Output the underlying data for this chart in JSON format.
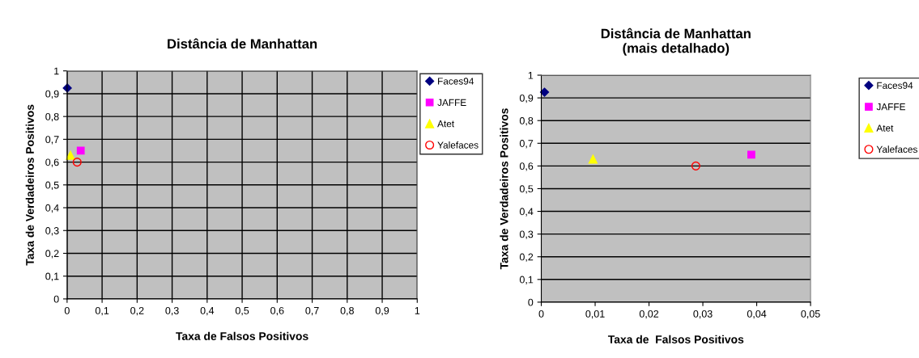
{
  "chart_data": [
    {
      "type": "scatter",
      "title": "Distância de Manhattan",
      "xlabel": "Taxa de Falsos Positivos",
      "ylabel": "Taxa de Verdadeiros Positivos",
      "xlim": [
        0,
        1
      ],
      "ylim": [
        0,
        1
      ],
      "xticks": [
        0,
        {
          "value": 0.1,
          "label": "0,1"
        },
        {
          "value": 0.2,
          "label": "0,2"
        },
        {
          "value": 0.3,
          "label": "0,3"
        },
        {
          "value": 0.4,
          "label": "0,4"
        },
        {
          "value": 0.5,
          "label": "0,5"
        },
        {
          "value": 0.6,
          "label": "0,6"
        },
        {
          "value": 0.7,
          "label": "0,7"
        },
        {
          "value": 0.8,
          "label": "0,8"
        },
        {
          "value": 0.9,
          "label": "0,9"
        },
        1
      ],
      "yticks": [
        0,
        {
          "value": 0.1,
          "label": "0,1"
        },
        {
          "value": 0.2,
          "label": "0,2"
        },
        {
          "value": 0.3,
          "label": "0,3"
        },
        {
          "value": 0.4,
          "label": "0,4"
        },
        {
          "value": 0.5,
          "label": "0,5"
        },
        {
          "value": 0.6,
          "label": "0,6"
        },
        {
          "value": 0.7,
          "label": "0,7"
        },
        {
          "value": 0.8,
          "label": "0,8"
        },
        {
          "value": 0.9,
          "label": "0,9"
        },
        1
      ],
      "grid": true,
      "legend": "right",
      "series": [
        {
          "name": "Faces94",
          "color": "#000080",
          "marker": "diamond",
          "x": [
            0.0006
          ],
          "values": [
            0.925
          ]
        },
        {
          "name": "JAFFE",
          "color": "#ff00ff",
          "marker": "square",
          "x": [
            0.039
          ],
          "values": [
            0.65
          ]
        },
        {
          "name": "Atet",
          "color": "#ffff00",
          "marker": "triangle",
          "x": [
            0.0096
          ],
          "values": [
            0.63
          ]
        },
        {
          "name": "Yalefaces",
          "color": "#ff0000",
          "marker": "circle",
          "x": [
            0.0287
          ],
          "values": [
            0.6
          ]
        }
      ]
    },
    {
      "type": "scatter",
      "title": "Distância de Manhattan\n(mais detalhado)",
      "xlabel": "Taxa de  Falsos Positivos",
      "ylabel": "Taxa de Verdadeiros Positivos",
      "xlim": [
        0,
        0.05
      ],
      "ylim": [
        0,
        1
      ],
      "xticks": [
        0,
        {
          "value": 0.01,
          "label": "0,01"
        },
        {
          "value": 0.02,
          "label": "0,02"
        },
        {
          "value": 0.03,
          "label": "0,03"
        },
        {
          "value": 0.04,
          "label": "0,04"
        },
        {
          "value": 0.05,
          "label": "0,05"
        }
      ],
      "yticks": [
        0,
        {
          "value": 0.1,
          "label": "0,1"
        },
        {
          "value": 0.2,
          "label": "0,2"
        },
        {
          "value": 0.3,
          "label": "0,3"
        },
        {
          "value": 0.4,
          "label": "0,4"
        },
        {
          "value": 0.5,
          "label": "0,5"
        },
        {
          "value": 0.6,
          "label": "0,6"
        },
        {
          "value": 0.7,
          "label": "0,7"
        },
        {
          "value": 0.8,
          "label": "0,8"
        },
        {
          "value": 0.9,
          "label": "0,9"
        },
        1
      ],
      "grid": "y",
      "legend": "right",
      "series": [
        {
          "name": "Faces94",
          "color": "#000080",
          "marker": "diamond",
          "x": [
            0.0006
          ],
          "values": [
            0.925
          ]
        },
        {
          "name": "JAFFE",
          "color": "#ff00ff",
          "marker": "square",
          "x": [
            0.039
          ],
          "values": [
            0.65
          ]
        },
        {
          "name": "Atet",
          "color": "#ffff00",
          "marker": "triangle",
          "x": [
            0.0096
          ],
          "values": [
            0.63
          ]
        },
        {
          "name": "Yalefaces",
          "color": "#ff0000",
          "marker": "circle",
          "x": [
            0.0287
          ],
          "values": [
            0.6
          ]
        }
      ]
    }
  ]
}
